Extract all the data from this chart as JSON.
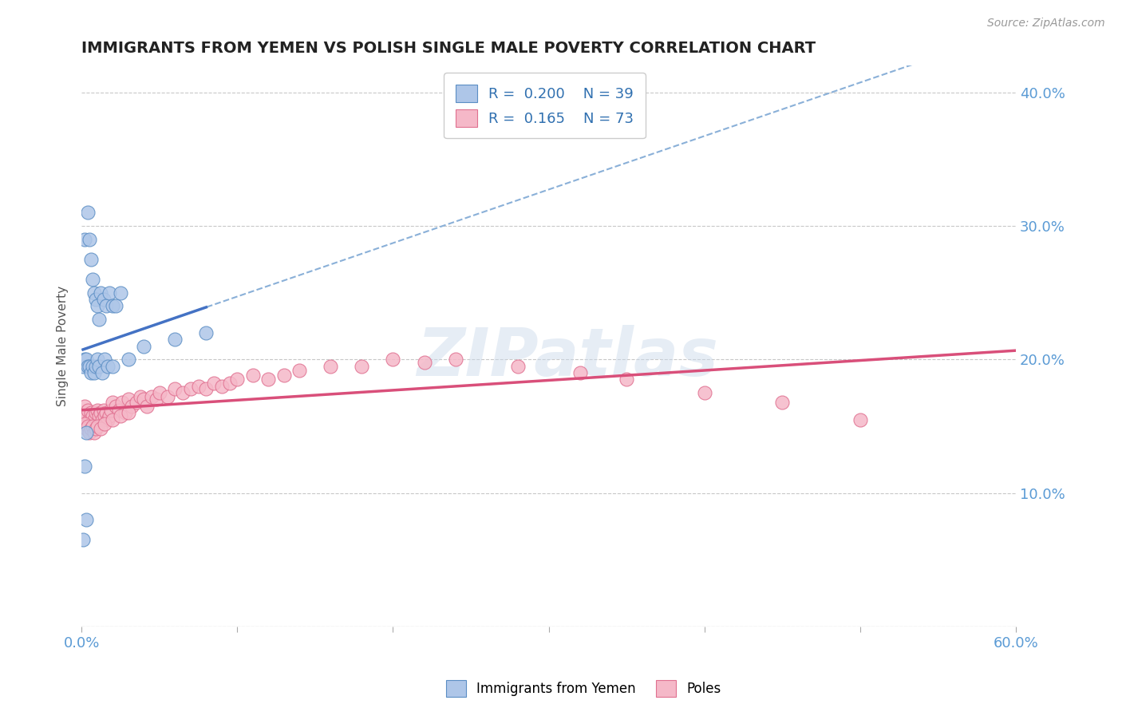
{
  "title": "IMMIGRANTS FROM YEMEN VS POLISH SINGLE MALE POVERTY CORRELATION CHART",
  "source": "Source: ZipAtlas.com",
  "ylabel": "Single Male Poverty",
  "xlim": [
    0.0,
    0.6
  ],
  "ylim": [
    0.0,
    0.42
  ],
  "xticks": [
    0.0,
    0.1,
    0.2,
    0.3,
    0.4,
    0.5,
    0.6
  ],
  "yticks_right": [
    0.0,
    0.1,
    0.2,
    0.3,
    0.4
  ],
  "ytick_labels_right": [
    "",
    "10.0%",
    "20.0%",
    "30.0%",
    "40.0%"
  ],
  "xtick_labels": [
    "0.0%",
    "",
    "",
    "",
    "",
    "",
    "60.0%"
  ],
  "legend_r1": "R =  0.200",
  "legend_n1": "N = 39",
  "legend_r2": "R =  0.165",
  "legend_n2": "N = 73",
  "blue_face": "#aec6e8",
  "blue_edge": "#5b8ec4",
  "pink_face": "#f5b8c8",
  "pink_edge": "#e07090",
  "blue_line": "#4472c4",
  "pink_line": "#d94f7a",
  "blue_dash": "#8ab0d8",
  "dashed_color": "#aaaaaa",
  "title_color": "#222222",
  "axis_color": "#5b9bd5",
  "grid_color": "#c8c8c8",
  "bg_color": "#ffffff",
  "watermark": "ZIPatlas",
  "yemen_x": [
    0.002,
    0.004,
    0.005,
    0.006,
    0.007,
    0.008,
    0.009,
    0.01,
    0.011,
    0.012,
    0.014,
    0.016,
    0.018,
    0.02,
    0.022,
    0.025,
    0.001,
    0.002,
    0.003,
    0.004,
    0.005,
    0.006,
    0.007,
    0.008,
    0.009,
    0.01,
    0.011,
    0.013,
    0.015,
    0.017,
    0.02,
    0.03,
    0.04,
    0.06,
    0.08,
    0.003,
    0.002,
    0.003,
    0.001
  ],
  "yemen_y": [
    0.29,
    0.31,
    0.29,
    0.275,
    0.26,
    0.25,
    0.245,
    0.24,
    0.23,
    0.25,
    0.245,
    0.24,
    0.25,
    0.24,
    0.24,
    0.25,
    0.195,
    0.2,
    0.2,
    0.195,
    0.195,
    0.19,
    0.195,
    0.19,
    0.195,
    0.2,
    0.195,
    0.19,
    0.2,
    0.195,
    0.195,
    0.2,
    0.21,
    0.215,
    0.22,
    0.145,
    0.12,
    0.08,
    0.065
  ],
  "poles_x": [
    0.001,
    0.002,
    0.003,
    0.004,
    0.005,
    0.006,
    0.007,
    0.008,
    0.009,
    0.01,
    0.011,
    0.012,
    0.013,
    0.014,
    0.015,
    0.016,
    0.017,
    0.018,
    0.019,
    0.02,
    0.022,
    0.024,
    0.026,
    0.028,
    0.03,
    0.032,
    0.035,
    0.038,
    0.04,
    0.042,
    0.045,
    0.048,
    0.05,
    0.055,
    0.06,
    0.065,
    0.07,
    0.075,
    0.08,
    0.085,
    0.09,
    0.095,
    0.1,
    0.11,
    0.12,
    0.13,
    0.14,
    0.16,
    0.18,
    0.2,
    0.22,
    0.24,
    0.28,
    0.32,
    0.35,
    0.4,
    0.45,
    0.5,
    0.001,
    0.002,
    0.003,
    0.004,
    0.005,
    0.006,
    0.007,
    0.008,
    0.009,
    0.01,
    0.012,
    0.015,
    0.02,
    0.025,
    0.03
  ],
  "poles_y": [
    0.16,
    0.165,
    0.158,
    0.162,
    0.155,
    0.16,
    0.158,
    0.155,
    0.16,
    0.162,
    0.158,
    0.16,
    0.155,
    0.162,
    0.158,
    0.16,
    0.155,
    0.158,
    0.162,
    0.168,
    0.165,
    0.162,
    0.168,
    0.16,
    0.17,
    0.165,
    0.168,
    0.172,
    0.17,
    0.165,
    0.172,
    0.17,
    0.175,
    0.172,
    0.178,
    0.175,
    0.178,
    0.18,
    0.178,
    0.182,
    0.18,
    0.182,
    0.185,
    0.188,
    0.185,
    0.188,
    0.192,
    0.195,
    0.195,
    0.2,
    0.198,
    0.2,
    0.195,
    0.19,
    0.185,
    0.175,
    0.168,
    0.155,
    0.15,
    0.152,
    0.148,
    0.15,
    0.145,
    0.148,
    0.15,
    0.145,
    0.148,
    0.15,
    0.148,
    0.152,
    0.155,
    0.158,
    0.16
  ]
}
